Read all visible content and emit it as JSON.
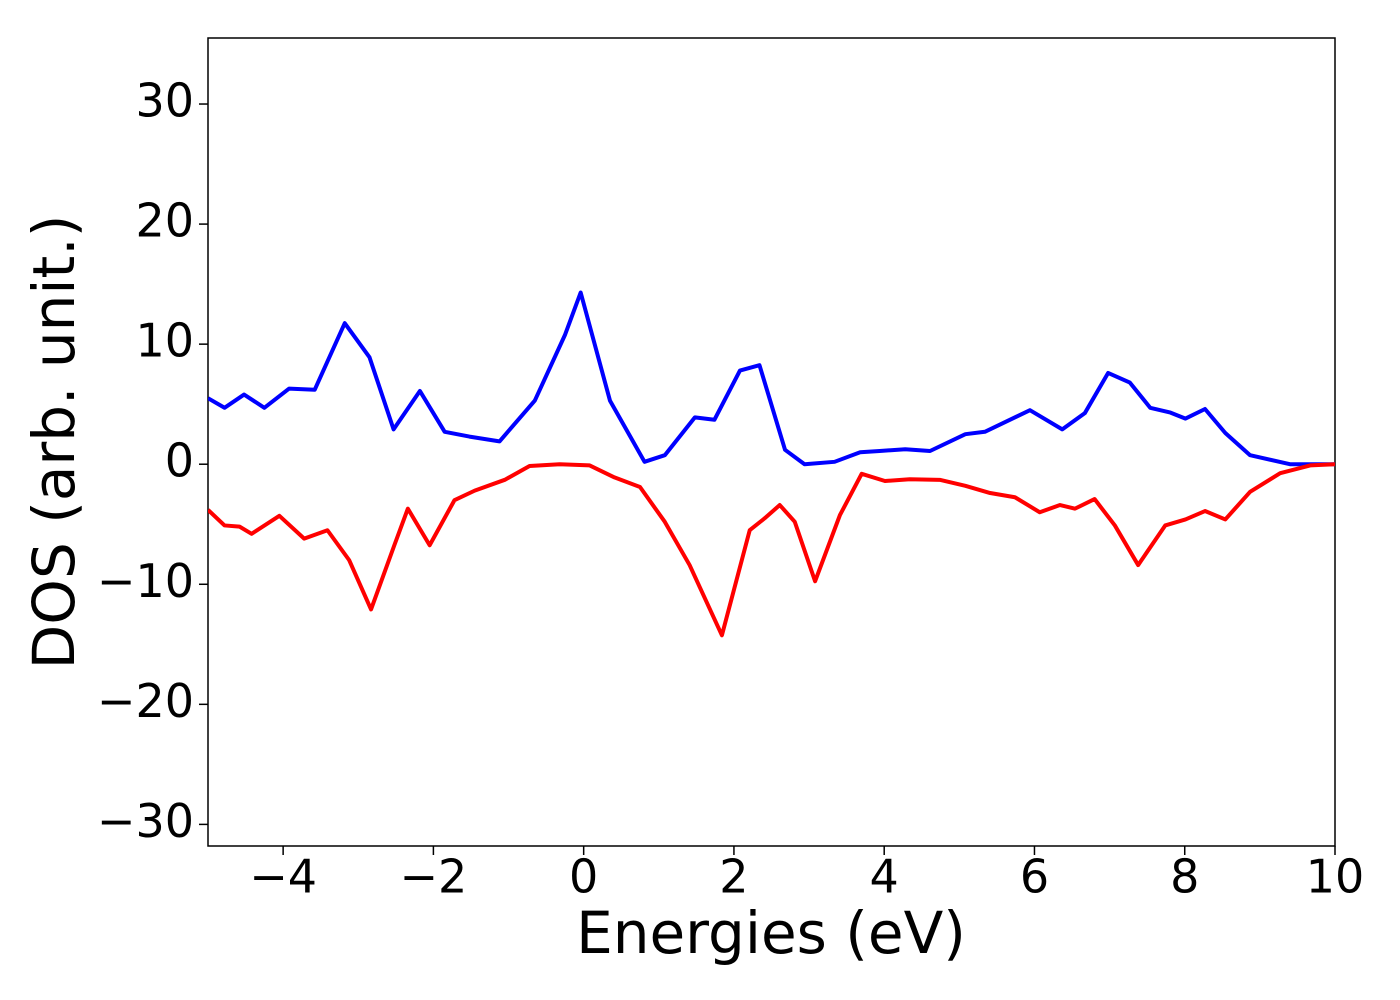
{
  "chart_data": {
    "type": "line",
    "xlabel": "Energies (eV)",
    "ylabel": "DOS (arb. unit.)",
    "xlim": [
      -5,
      10
    ],
    "ylim": [
      -31.8,
      35.5
    ],
    "xticks": [
      {
        "value": -4,
        "label": "−4"
      },
      {
        "value": -2,
        "label": "−2"
      },
      0,
      2,
      4,
      6,
      8,
      10
    ],
    "yticks": [
      {
        "value": -30,
        "label": "−30"
      },
      {
        "value": -20,
        "label": "−20"
      },
      {
        "value": -10,
        "label": "−10"
      },
      0,
      10,
      20,
      30
    ],
    "series": [
      {
        "color": "#0000ff",
        "x": [
          -5,
          -4.78,
          -4.52,
          -4.25,
          -3.92,
          -3.58,
          -3.18,
          -2.85,
          -2.53,
          -2.18,
          -1.85,
          -1.52,
          -1.12,
          -0.65,
          -0.25,
          -0.04,
          0.35,
          0.81,
          1.08,
          1.48,
          1.74,
          2.08,
          2.34,
          2.68,
          2.94,
          3.34,
          3.68,
          3.94,
          4.28,
          4.61,
          5.08,
          5.34,
          5.94,
          6.37,
          6.67,
          6.98,
          7.27,
          7.54,
          7.81,
          8.01,
          8.27,
          8.54,
          8.87,
          9.4,
          10
        ],
        "values": [
          5.5,
          4.7,
          5.8,
          4.7,
          6.3,
          6.2,
          11.75,
          8.9,
          2.9,
          6.1,
          2.7,
          2.3,
          1.9,
          5.3,
          10.75,
          14.3,
          5.3,
          0.2,
          0.75,
          3.9,
          3.7,
          7.8,
          8.25,
          1.2,
          0,
          0.2,
          1.0,
          1.1,
          1.25,
          1.1,
          2.5,
          2.7,
          4.5,
          2.9,
          4.25,
          7.6,
          6.8,
          4.7,
          4.3,
          3.8,
          4.6,
          2.6,
          0.75,
          0,
          0
        ]
      },
      {
        "color": "#ff0000",
        "x": [
          -5,
          -4.78,
          -4.58,
          -4.42,
          -4.05,
          -3.72,
          -3.41,
          -3.12,
          -2.83,
          -2.52,
          -2.34,
          -2.05,
          -1.72,
          -1.45,
          -1.05,
          -0.72,
          -0.32,
          0.08,
          0.41,
          0.75,
          1.08,
          1.41,
          1.84,
          2.21,
          2.41,
          2.61,
          2.81,
          3.08,
          3.41,
          3.7,
          4.01,
          4.34,
          4.74,
          5.08,
          5.41,
          5.74,
          6.07,
          6.34,
          6.54,
          6.8,
          7.07,
          7.38,
          7.74,
          8.01,
          8.27,
          8.54,
          8.87,
          9.27,
          9.67,
          10
        ],
        "values": [
          -3.8,
          -5.1,
          -5.2,
          -5.8,
          -4.3,
          -6.2,
          -5.5,
          -8.0,
          -12.1,
          -6.75,
          -3.7,
          -6.75,
          -3.0,
          -2.2,
          -1.3,
          -0.15,
          0,
          -0.1,
          -1.1,
          -1.9,
          -4.8,
          -8.4,
          -14.25,
          -5.5,
          -4.5,
          -3.4,
          -4.8,
          -9.75,
          -4.25,
          -0.8,
          -1.4,
          -1.25,
          -1.3,
          -1.8,
          -2.4,
          -2.75,
          -4.0,
          -3.4,
          -3.7,
          -2.9,
          -5.1,
          -8.4,
          -5.1,
          -4.6,
          -3.9,
          -4.6,
          -2.3,
          -0.75,
          -0.1,
          0
        ]
      }
    ]
  }
}
